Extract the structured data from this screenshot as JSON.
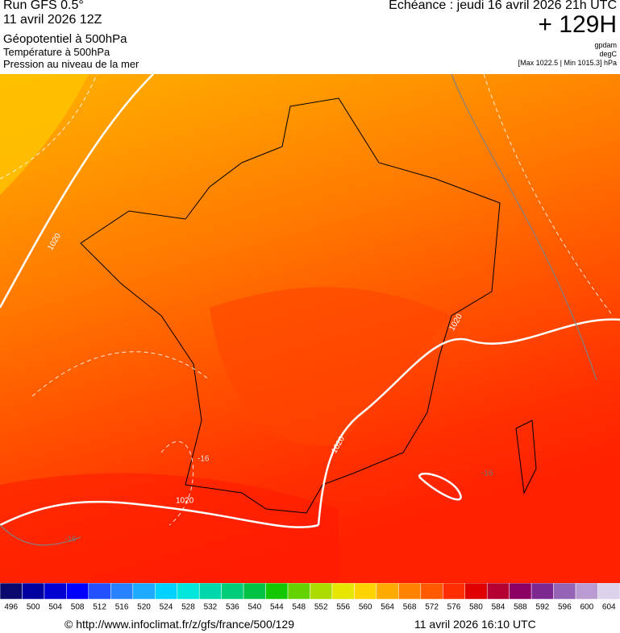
{
  "header": {
    "run": "Run GFS 0.5°",
    "run_date": "11 avril 2026 12Z",
    "field1": "Géopotentiel à 500hPa",
    "field2": "Température à 500hPa",
    "field3": "Pression au niveau de la mer",
    "valid": "Echéance : jeudi 16 avril 2026 21h UTC",
    "lead": "+ 129H",
    "unit1": "gpdam",
    "unit2": "degC",
    "range": "[Max 1022.5 | Min 1015.3] hPa"
  },
  "map": {
    "contour_labels": [
      "1020",
      "1020",
      "1020",
      "1020",
      "-16",
      "-16",
      "-16"
    ]
  },
  "legend": {
    "ticks": [
      496,
      500,
      504,
      508,
      512,
      516,
      520,
      524,
      528,
      532,
      536,
      540,
      544,
      548,
      552,
      556,
      560,
      564,
      568,
      572,
      576,
      580,
      584,
      588,
      592,
      596,
      600,
      604
    ],
    "colors": [
      "#0a0a6e",
      "#0000a0",
      "#0000d2",
      "#0000ff",
      "#2050ff",
      "#2882ff",
      "#1eaaff",
      "#00d2ff",
      "#00e6dc",
      "#00d7aa",
      "#00cd78",
      "#00c346",
      "#14c800",
      "#64d200",
      "#aadc00",
      "#e6e600",
      "#ffd200",
      "#ffaa00",
      "#ff8200",
      "#ff5a00",
      "#ff2d00",
      "#e10000",
      "#b40032",
      "#8c0064",
      "#7d2891",
      "#9664b4",
      "#b99bd2",
      "#dcd2eb"
    ]
  },
  "footer": {
    "url": "© http://www.infoclimat.fr/z/gfs/france/500/129",
    "stamp": "11 avril 2026 16:10 UTC"
  }
}
